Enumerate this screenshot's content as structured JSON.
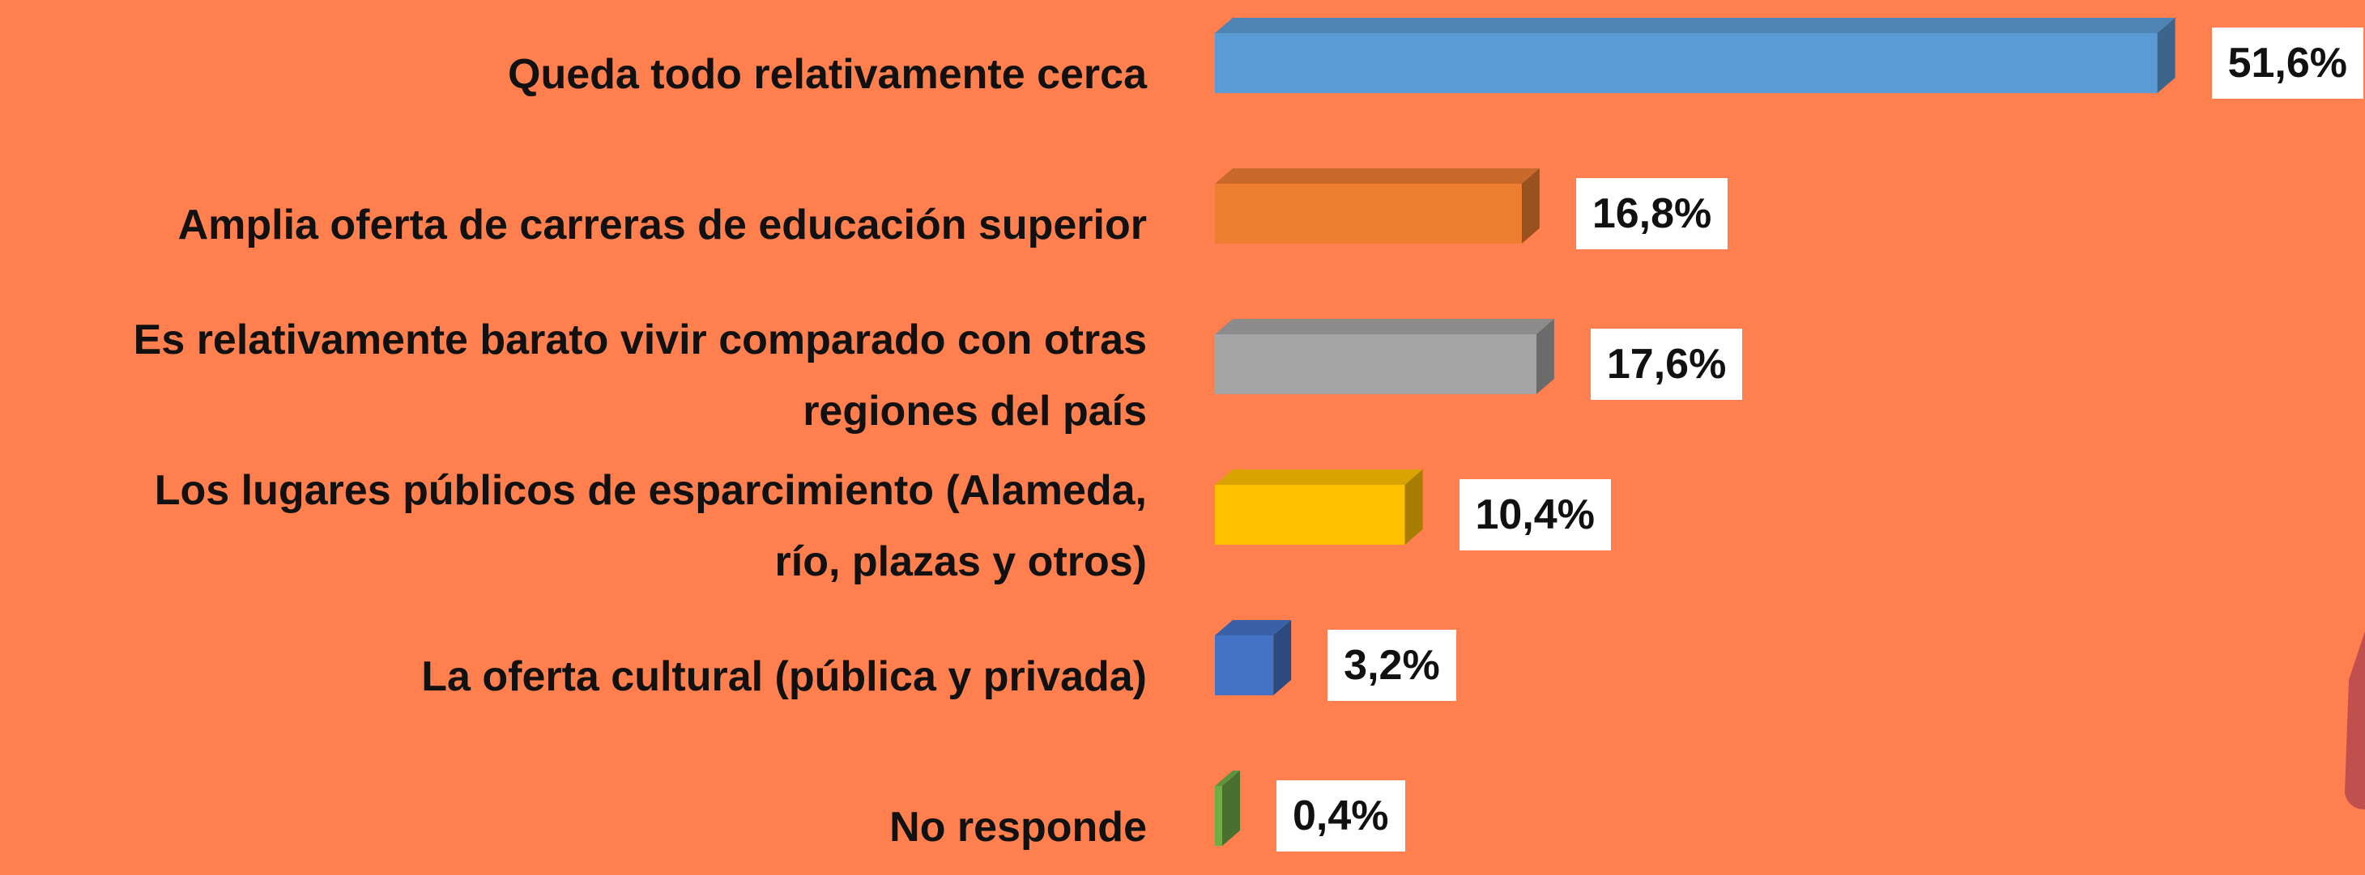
{
  "chart_data": {
    "type": "bar",
    "orientation": "horizontal",
    "categories": [
      "Queda todo relativamente cerca",
      "Amplia oferta de carreras de educación superior",
      "Es relativamente barato vivir comparado con otras\nregiones del país",
      "Los lugares públicos de esparcimiento (Alameda,\nrío, plazas y otros)",
      "La oferta cultural (pública y privada)",
      "No responde"
    ],
    "values": [
      51.6,
      16.8,
      17.6,
      10.4,
      3.2,
      0.4
    ],
    "value_labels": [
      "51,6%",
      "16,8%",
      "17,6%",
      "10,4%",
      "3,2%",
      "0,4%"
    ],
    "colors": [
      "#5b9bd5",
      "#ed7d31",
      "#a5a5a5",
      "#ffc000",
      "#4472c4",
      "#70ad47"
    ]
  }
}
